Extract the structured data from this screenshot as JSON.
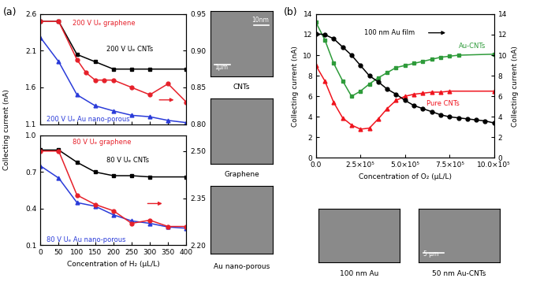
{
  "chart_data": [
    {
      "type": "line",
      "tick_labels": "y",
      "xlim": [
        0,
        400
      ],
      "xticks": [
        0,
        50,
        100,
        150,
        200,
        250,
        300,
        350,
        400
      ],
      "ylim": [
        1.1,
        2.6
      ],
      "yticks": [
        1.1,
        1.6,
        2.1,
        2.6
      ],
      "y2lim": [
        0.8,
        0.95
      ],
      "y2ticks": [
        {
          "value": 0.8,
          "label": "0.80"
        },
        {
          "value": 0.85,
          "label": "0.85"
        },
        {
          "value": 0.9,
          "label": "0.90"
        },
        {
          "value": 0.95,
          "label": "0.95"
        }
      ],
      "series": [
        {
          "name": "200 V Uₑ graphene",
          "color": "#e6202a",
          "marker": "circle",
          "line_style": "solid",
          "axis": "y2",
          "x": [
            0,
            50,
            100,
            125,
            150,
            175,
            200,
            250,
            300,
            350,
            400
          ],
          "values": [
            0.94,
            0.94,
            0.888,
            0.87,
            0.86,
            0.86,
            0.86,
            0.85,
            0.84,
            0.855,
            0.83
          ]
        },
        {
          "name": "200 V Uₑ CNTs",
          "color": "#000000",
          "marker": "square",
          "line_style": "solid",
          "x": [
            0,
            50,
            100,
            150,
            200,
            250,
            300,
            400
          ],
          "values": [
            2.5,
            2.5,
            2.05,
            1.95,
            1.85,
            1.85,
            1.85,
            1.85
          ]
        },
        {
          "name": "200 V Uₑ Au nano-porous",
          "color": "#2a3bd9",
          "marker": "triangle",
          "line_style": "solid",
          "x": [
            0,
            50,
            100,
            150,
            200,
            250,
            300,
            350,
            400
          ],
          "values": [
            2.28,
            1.95,
            1.5,
            1.35,
            1.28,
            1.22,
            1.2,
            1.15,
            1.12
          ]
        }
      ]
    },
    {
      "type": "line",
      "xlim": [
        0,
        400
      ],
      "xticks": [
        0,
        50,
        100,
        150,
        200,
        250,
        300,
        350,
        400
      ],
      "ylim": [
        0.1,
        1.0
      ],
      "yticks": [
        0.1,
        0.4,
        0.7,
        1.0
      ],
      "y2lim": [
        2.2,
        2.55
      ],
      "y2ticks": [
        {
          "value": 2.2,
          "label": "2.20"
        },
        {
          "value": 2.35,
          "label": "2.35"
        },
        {
          "value": 2.5,
          "label": "2.50"
        }
      ],
      "series": [
        {
          "name": "80 V Uₑ graphene",
          "color": "#e6202a",
          "marker": "circle",
          "line_style": "solid",
          "axis": "y2",
          "x": [
            0,
            50,
            100,
            150,
            200,
            250,
            300,
            350,
            400
          ],
          "values": [
            2.5,
            2.5,
            2.36,
            2.33,
            2.31,
            2.27,
            2.28,
            2.26,
            2.26
          ]
        },
        {
          "name": "80 V Uₑ CNTs",
          "color": "#000000",
          "marker": "square",
          "line_style": "solid",
          "x": [
            0,
            50,
            100,
            150,
            200,
            250,
            300,
            400
          ],
          "values": [
            0.88,
            0.88,
            0.78,
            0.7,
            0.67,
            0.67,
            0.66,
            0.66
          ]
        },
        {
          "name": "80 V Uₑ Au nano-porous",
          "color": "#2a3bd9",
          "marker": "triangle",
          "line_style": "solid",
          "x": [
            0,
            50,
            100,
            150,
            200,
            250,
            300,
            350,
            400
          ],
          "values": [
            0.75,
            0.65,
            0.45,
            0.42,
            0.35,
            0.3,
            0.28,
            0.25,
            0.24
          ]
        }
      ]
    },
    {
      "type": "line",
      "xlabel": "Concentration of O₂ (μL/L)",
      "ylabel": "Collecting current (nA)",
      "y2label": "Collecting current (nA)",
      "xlim": [
        0,
        1000000
      ],
      "xticks": [
        {
          "value": 0,
          "label": "0.0"
        },
        {
          "value": 250000,
          "label": "2.5×10⁵"
        },
        {
          "value": 500000,
          "label": "5.0×10⁵"
        },
        {
          "value": 750000,
          "label": "7.5×10⁵"
        },
        {
          "value": 1000000,
          "label": "10.0×10⁵"
        }
      ],
      "ylim": [
        0,
        14
      ],
      "yticks": [
        0,
        2,
        4,
        6,
        8,
        10,
        12,
        14
      ],
      "y2lim": [
        0,
        14
      ],
      "y2ticks": [
        0,
        2,
        4,
        6,
        8,
        10,
        12,
        14
      ],
      "series": [
        {
          "name": "100 nm Au film",
          "color": "#000000",
          "marker": "circle",
          "line_style": "solid",
          "axis": "y2",
          "x": [
            0,
            50000,
            100000,
            150000,
            200000,
            250000,
            300000,
            350000,
            400000,
            450000,
            500000,
            550000,
            600000,
            650000,
            700000,
            750000,
            800000,
            850000,
            900000,
            950000,
            1000000
          ],
          "values": [
            12.1,
            12.0,
            11.6,
            10.8,
            10.0,
            9.0,
            8.0,
            7.4,
            6.7,
            6.2,
            5.6,
            5.1,
            4.8,
            4.5,
            4.2,
            4.0,
            3.9,
            3.8,
            3.7,
            3.6,
            3.4
          ]
        },
        {
          "name": "Au-CNTs",
          "color": "#2e9b3a",
          "marker": "square",
          "line_style": "solid",
          "x": [
            0,
            50000,
            100000,
            150000,
            200000,
            250000,
            300000,
            350000,
            400000,
            450000,
            500000,
            550000,
            600000,
            650000,
            700000,
            750000,
            800000,
            1000000
          ],
          "values": [
            13.2,
            11.5,
            9.2,
            7.5,
            6.0,
            6.5,
            7.2,
            7.8,
            8.3,
            8.8,
            9.0,
            9.2,
            9.4,
            9.6,
            9.8,
            9.9,
            10.0,
            10.1
          ]
        },
        {
          "name": "Pure CNTs",
          "color": "#f0141e",
          "marker": "triangle",
          "line_style": "solid",
          "x": [
            0,
            50000,
            100000,
            150000,
            200000,
            250000,
            300000,
            350000,
            400000,
            450000,
            500000,
            550000,
            600000,
            650000,
            700000,
            750000,
            1000000
          ],
          "values": [
            9.0,
            7.5,
            5.4,
            3.9,
            3.2,
            2.8,
            2.9,
            3.8,
            4.8,
            5.6,
            6.0,
            6.2,
            6.3,
            6.4,
            6.4,
            6.5,
            6.5
          ]
        }
      ]
    }
  ],
  "panels": [
    {
      "label": "(a)",
      "ylabel": "Collecting current (nA)",
      "xlabel": "Concentration of H₂ (μL/L)",
      "images": [
        {
          "caption": "CNTs",
          "scale_bars": [
            "1μm",
            "10nm"
          ]
        },
        {
          "caption": "Graphene",
          "scale_bars": []
        },
        {
          "caption": "Au nano-porous",
          "scale_bars": []
        }
      ]
    },
    {
      "label": "(b)",
      "images": [
        {
          "caption": "100 nm Au",
          "scale_bars": []
        },
        {
          "caption": "50 nm Au-CNTs",
          "scale_bars": [
            "5 μm"
          ]
        }
      ]
    }
  ]
}
